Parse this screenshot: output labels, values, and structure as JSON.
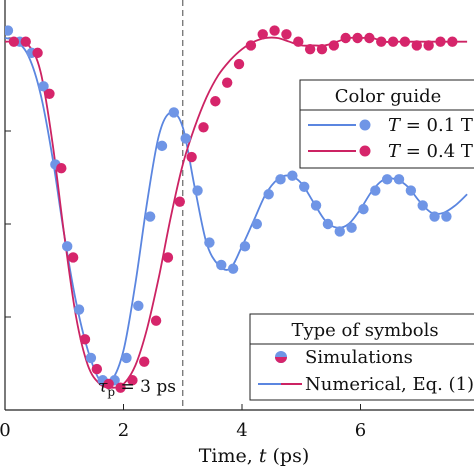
{
  "chart_data": {
    "type": "line",
    "xlabel_text": "Time, ",
    "xlabel_var": "t",
    "xlabel_unit": " (ps)",
    "xticks": [
      0,
      2,
      4,
      6
    ],
    "xlim": [
      0,
      7.8
    ],
    "ylim": [
      0,
      1.1
    ],
    "grid": false,
    "marker": {
      "x": 3,
      "label_var": "τ",
      "label_sub": "p",
      "label_rest": " = 3 ps"
    },
    "colors": {
      "blue": "#6f95e6",
      "magenta": "#d6256b",
      "blue_line": "#5b86e0",
      "magenta_line": "#cc2363"
    },
    "legend_color": {
      "title": "Color guide",
      "position": "upper-right",
      "entries": [
        {
          "var": "T",
          "text": " = 0.1 T",
          "color_key": "blue"
        },
        {
          "var": "T",
          "text": " = 0.4 T",
          "color_key": "magenta"
        }
      ]
    },
    "legend_symbols": {
      "title": "Type of symbols",
      "position": "lower-right",
      "entries": [
        "Simulations",
        "Numerical, Eq. (1)"
      ]
    },
    "series": [
      {
        "color_key": "blue",
        "line": {
          "x": [
            0,
            0.2,
            0.4,
            0.6,
            0.8,
            1.0,
            1.2,
            1.4,
            1.6,
            1.8,
            2.0,
            2.2,
            2.4,
            2.6,
            2.8,
            3.0,
            3.2,
            3.4,
            3.6,
            3.8,
            4.0,
            4.2,
            4.4,
            4.6,
            4.8,
            5.0,
            5.2,
            5.4,
            5.6,
            5.8,
            6.0,
            6.2,
            6.4,
            6.6,
            6.8,
            7.0,
            7.2,
            7.4,
            7.6,
            7.8
          ],
          "y": [
            1.0,
            0.99,
            0.95,
            0.85,
            0.68,
            0.47,
            0.29,
            0.16,
            0.08,
            0.08,
            0.16,
            0.34,
            0.56,
            0.74,
            0.8,
            0.76,
            0.6,
            0.45,
            0.39,
            0.38,
            0.44,
            0.51,
            0.58,
            0.62,
            0.63,
            0.61,
            0.56,
            0.51,
            0.49,
            0.5,
            0.54,
            0.59,
            0.62,
            0.62,
            0.6,
            0.56,
            0.53,
            0.53,
            0.55,
            0.58
          ]
        },
        "points": {
          "x": [
            0.05,
            0.25,
            0.45,
            0.65,
            0.85,
            1.05,
            1.25,
            1.45,
            1.65,
            1.85,
            2.05,
            2.25,
            2.45,
            2.65,
            2.85,
            3.05,
            3.25,
            3.45,
            3.65,
            3.85,
            4.05,
            4.25,
            4.45,
            4.65,
            4.85,
            5.05,
            5.25,
            5.45,
            5.65,
            5.85,
            6.05,
            6.25,
            6.45,
            6.65,
            6.85,
            7.05,
            7.25,
            7.45
          ],
          "y": [
            1.02,
            0.99,
            0.96,
            0.87,
            0.66,
            0.44,
            0.27,
            0.14,
            0.08,
            0.08,
            0.14,
            0.28,
            0.52,
            0.71,
            0.8,
            0.73,
            0.59,
            0.45,
            0.39,
            0.38,
            0.44,
            0.5,
            0.58,
            0.62,
            0.63,
            0.6,
            0.55,
            0.5,
            0.48,
            0.49,
            0.54,
            0.59,
            0.62,
            0.62,
            0.59,
            0.55,
            0.52,
            0.52
          ]
        }
      },
      {
        "color_key": "magenta",
        "line": {
          "x": [
            0,
            0.2,
            0.4,
            0.6,
            0.8,
            1.0,
            1.2,
            1.4,
            1.6,
            1.8,
            2.0,
            2.2,
            2.4,
            2.6,
            2.8,
            3.0,
            3.2,
            3.4,
            3.6,
            3.8,
            4.0,
            4.2,
            4.4,
            4.6,
            4.8,
            5.0,
            5.2,
            5.4,
            5.6,
            5.8,
            6.0,
            6.2,
            6.4,
            6.6,
            6.8,
            7.0,
            7.2,
            7.4,
            7.6,
            7.8
          ],
          "y": [
            0.99,
            0.99,
            0.98,
            0.91,
            0.72,
            0.47,
            0.25,
            0.12,
            0.07,
            0.06,
            0.07,
            0.12,
            0.22,
            0.36,
            0.52,
            0.66,
            0.76,
            0.84,
            0.9,
            0.94,
            0.97,
            0.99,
            1.0,
            1.0,
            0.99,
            0.98,
            0.98,
            0.98,
            0.99,
            1.0,
            1.0,
            1.0,
            0.99,
            0.99,
            0.99,
            0.99,
            0.99,
            0.99,
            0.99,
            0.99
          ]
        },
        "points": {
          "x": [
            0.15,
            0.35,
            0.55,
            0.75,
            0.95,
            1.15,
            1.35,
            1.55,
            1.75,
            1.95,
            2.15,
            2.35,
            2.55,
            2.75,
            2.95,
            3.15,
            3.35,
            3.55,
            3.75,
            3.95,
            4.15,
            4.35,
            4.55,
            4.75,
            4.95,
            5.15,
            5.35,
            5.55,
            5.75,
            5.95,
            6.15,
            6.35,
            6.55,
            6.75,
            6.95,
            7.15,
            7.35,
            7.55
          ],
          "y": [
            0.99,
            0.99,
            0.96,
            0.85,
            0.65,
            0.41,
            0.19,
            0.11,
            0.07,
            0.06,
            0.08,
            0.13,
            0.24,
            0.41,
            0.56,
            0.68,
            0.76,
            0.83,
            0.88,
            0.93,
            0.98,
            1.01,
            1.02,
            1.01,
            0.99,
            0.97,
            0.97,
            0.98,
            1.0,
            1.0,
            1.0,
            0.99,
            0.99,
            0.99,
            0.98,
            0.98,
            0.99,
            0.99
          ]
        }
      }
    ]
  }
}
